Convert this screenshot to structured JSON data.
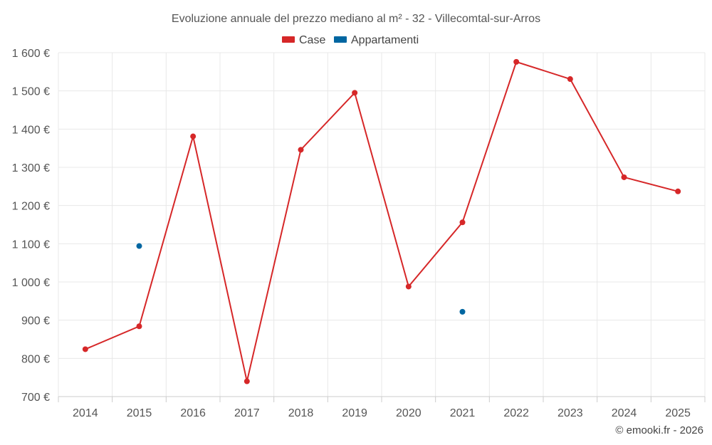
{
  "chart_data": {
    "type": "line",
    "title": "Evoluzione annuale del prezzo mediano al m² - 32 - Villecomtal-sur-Arros",
    "categories": [
      "2014",
      "2015",
      "2016",
      "2017",
      "2018",
      "2019",
      "2020",
      "2021",
      "2022",
      "2023",
      "2024",
      "2025"
    ],
    "ylim": [
      700,
      1600
    ],
    "yticks": [
      700,
      800,
      900,
      1000,
      1100,
      1200,
      1300,
      1400,
      1500,
      1600
    ],
    "ytick_labels": [
      "700 €",
      "800 €",
      "900 €",
      "1 000 €",
      "1 100 €",
      "1 200 €",
      "1 300 €",
      "1 400 €",
      "1 500 €",
      "1 600 €"
    ],
    "grid": true,
    "legend_position": "top-center",
    "series": [
      {
        "name": "Case",
        "color": "#d62728",
        "style": "line",
        "values": [
          824,
          884,
          1381,
          740,
          1346,
          1495,
          988,
          1156,
          1576,
          1531,
          1274,
          1237
        ]
      },
      {
        "name": "Appartamenti",
        "color": "#0066a1",
        "style": "points",
        "values": [
          null,
          1094,
          null,
          null,
          null,
          null,
          null,
          922,
          null,
          null,
          null,
          null
        ]
      }
    ]
  },
  "credit": "© emooki.fr - 2026"
}
